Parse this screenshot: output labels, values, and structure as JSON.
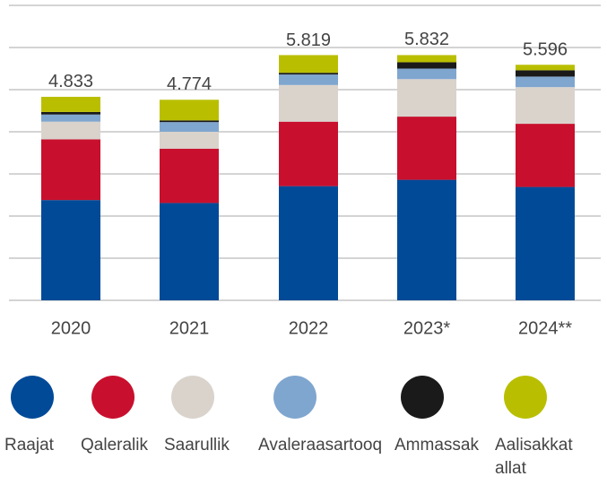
{
  "chart_data": {
    "type": "stacked_bar",
    "categories": [
      "2020",
      "2021",
      "2022",
      "2023*",
      "2024**"
    ],
    "series": [
      {
        "name": "Raajat",
        "color": "#004a98",
        "values": [
          2.38,
          2.31,
          2.71,
          2.86,
          2.69
        ]
      },
      {
        "name": "Qaleralik",
        "color": "#c8102e",
        "values": [
          1.44,
          1.29,
          1.53,
          1.5,
          1.5
        ]
      },
      {
        "name": "Saarullik",
        "color": "#d9d3cc",
        "values": [
          0.42,
          0.4,
          0.87,
          0.89,
          0.87
        ]
      },
      {
        "name": "Avaleraasartooq",
        "color": "#7fa6cf",
        "values": [
          0.17,
          0.23,
          0.25,
          0.25,
          0.25
        ]
      },
      {
        "name": "Ammassak",
        "color": "#1a1a1a",
        "values": [
          0.06,
          0.04,
          0.04,
          0.15,
          0.15
        ]
      },
      {
        "name": "Aalisakkat allat",
        "color": "#b9bf00",
        "values": [
          0.36,
          0.49,
          0.42,
          0.17,
          0.13
        ]
      }
    ],
    "totals": [
      4.833,
      4.774,
      5.819,
      5.832,
      5.596
    ],
    "ylim": [
      0,
      7
    ],
    "yticks": [
      0,
      1,
      2,
      3,
      4,
      5,
      6,
      7
    ],
    "grid": true
  }
}
